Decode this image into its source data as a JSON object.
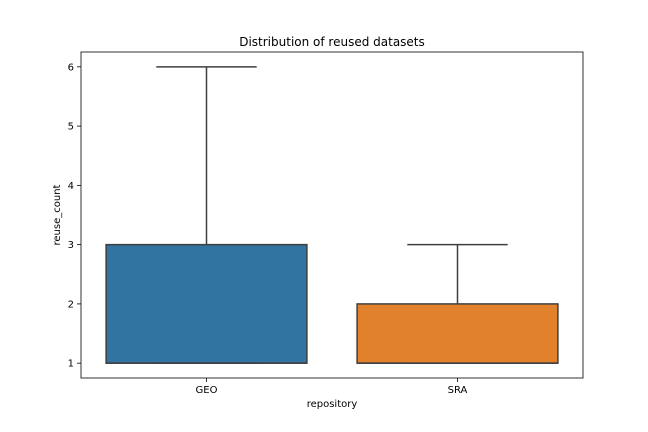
{
  "chart_data": {
    "type": "box",
    "title": "Distribution of reused datasets",
    "xlabel": "repository",
    "ylabel": "reuse_count",
    "categories": [
      "GEO",
      "SRA"
    ],
    "ylim": [
      0.75,
      6.25
    ],
    "yticks": [
      "1",
      "2",
      "3",
      "4",
      "5",
      "6"
    ],
    "boxes": [
      {
        "category": "GEO",
        "whisker_low": 1,
        "q1": 1,
        "median": 1,
        "q3": 3,
        "whisker_high": 6,
        "color": "#3274a1"
      },
      {
        "category": "SRA",
        "whisker_low": 1,
        "q1": 1,
        "median": 1,
        "q3": 2,
        "whisker_high": 3,
        "color": "#e1812c"
      }
    ],
    "grid": false,
    "line_color": "#3f3f3f"
  }
}
